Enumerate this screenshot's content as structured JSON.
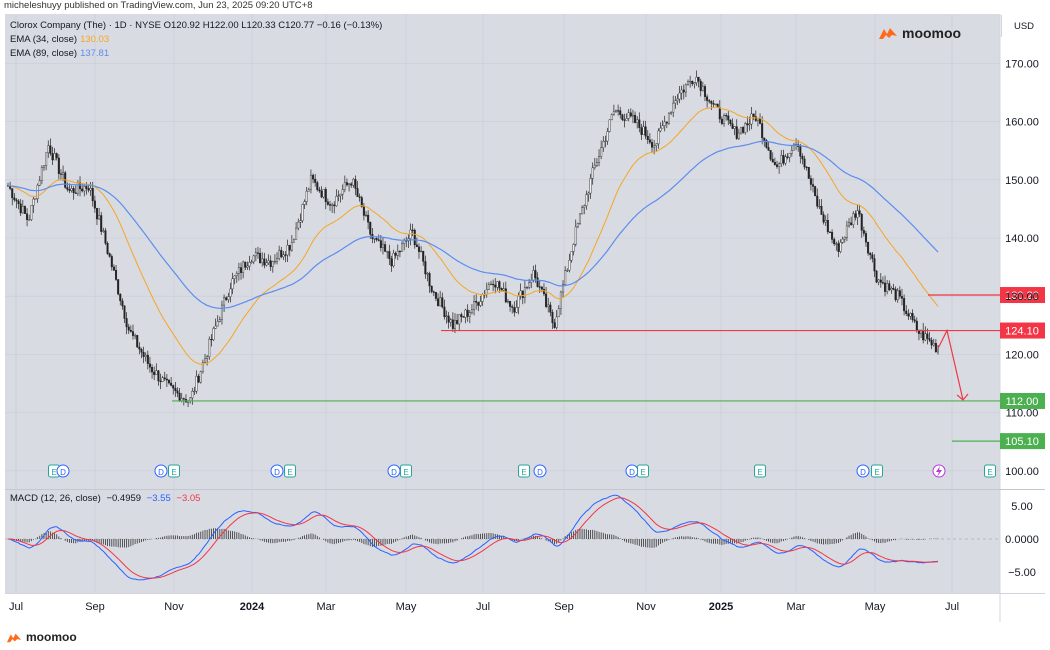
{
  "header": {
    "published_line": "micheleshuyy published on TradingView.com, Jun 23, 2025 09:20 UTC+8"
  },
  "legend": {
    "symbol_line": "Clorox Company (The) · 1D · NYSE  O120.92  H122.00  L120.33  C120.77  −0.16 (−0.13%)",
    "ema34_label": "EMA (34, close)",
    "ema34_value": "130.03",
    "ema89_label": "EMA (89, close)",
    "ema89_value": "137.81",
    "macd_label": "MACD (12, 26, close)",
    "macd_hist": "−0.4959",
    "macd_line": "−3.55",
    "macd_signal": "−3.05"
  },
  "brand": {
    "name": "moomoo"
  },
  "currency": "USD",
  "colors": {
    "ema34": "#f5a623",
    "ema89": "#5b8def",
    "macd": "#2962ff",
    "signal": "#f23645",
    "support": "#4caf50",
    "resistance": "#f23645",
    "bg": "#d9dbe3"
  },
  "chart_data": [
    {
      "type": "candlestick",
      "title": "Clorox Company (The) · 1D · NYSE",
      "x_ticks": [
        "Jul",
        "Sep",
        "Nov",
        "2024",
        "Mar",
        "May",
        "Jul",
        "Sep",
        "Nov",
        "2025",
        "Mar",
        "May",
        "Jul"
      ],
      "y_ticks": [
        "170.00",
        "160.00",
        "150.00",
        "140.00",
        "130.00",
        "120.00",
        "110.00",
        "100.00"
      ],
      "ylim": [
        98,
        177
      ],
      "price_path": [
        [
          "Jul",
          149
        ],
        [
          "Aug",
          143
        ],
        [
          "Aug",
          156
        ],
        [
          "Aug",
          148
        ],
        [
          "Sep",
          149
        ],
        [
          "Sep",
          137
        ],
        [
          "Oct",
          124
        ],
        [
          "Oct",
          118
        ],
        [
          "Oct",
          114
        ],
        [
          "Nov",
          112
        ],
        [
          "Nov",
          122
        ],
        [
          "Nov",
          132
        ],
        [
          "Dec",
          137
        ],
        [
          "2024",
          136
        ],
        [
          "2024",
          139
        ],
        [
          "Feb",
          150
        ],
        [
          "Feb",
          146
        ],
        [
          "Mar",
          150
        ],
        [
          "Mar",
          140
        ],
        [
          "Apr",
          136
        ],
        [
          "Apr",
          141
        ],
        [
          "May",
          131
        ],
        [
          "May",
          125
        ],
        [
          "Jun",
          128
        ],
        [
          "Jun",
          133
        ],
        [
          "Jul",
          128
        ],
        [
          "Jul",
          134
        ],
        [
          "Aug",
          125
        ],
        [
          "Aug",
          140
        ],
        [
          "Aug",
          152
        ],
        [
          "Sep",
          162
        ],
        [
          "Sep",
          160
        ],
        [
          "Oct",
          156
        ],
        [
          "Nov",
          164
        ],
        [
          "Nov",
          168
        ],
        [
          "Dec",
          162
        ],
        [
          "2025",
          158
        ],
        [
          "2025",
          161
        ],
        [
          "Feb",
          152
        ],
        [
          "Mar",
          157
        ],
        [
          "Mar",
          146
        ],
        [
          "Apr",
          138
        ],
        [
          "May",
          145
        ],
        [
          "May",
          133
        ],
        [
          "Jun",
          130
        ],
        [
          "Jun",
          124
        ],
        [
          "Jun",
          121
        ]
      ],
      "series": [
        {
          "name": "EMA (34, close)",
          "last": 130.03
        },
        {
          "name": "EMA (89, close)",
          "last": 137.81
        }
      ],
      "levels": [
        {
          "label": "130.20",
          "value": 130.2
        },
        {
          "label": "124.10",
          "value": 124.1
        },
        {
          "label": "112.00",
          "value": 112.0
        },
        {
          "label": "105.10",
          "value": 105.1
        }
      ],
      "annotations": [
        "projection arrow from 124.10 down to 112.00"
      ],
      "events": [
        "E",
        "D",
        "D",
        "E",
        "D",
        "E",
        "D",
        "E",
        "E",
        "D",
        "D",
        "E",
        "E",
        "D",
        "E",
        "E"
      ],
      "grid": true
    },
    {
      "type": "line",
      "title": "MACD (12, 26, close)",
      "y_ticks": [
        "5.00",
        "0.0000",
        "−5.00"
      ],
      "ylim": [
        -7.5,
        7.5
      ],
      "series": [
        {
          "name": "MACD",
          "last": -3.55
        },
        {
          "name": "Signal",
          "last": -3.05
        },
        {
          "name": "Histogram",
          "last": -0.4959
        }
      ]
    }
  ]
}
